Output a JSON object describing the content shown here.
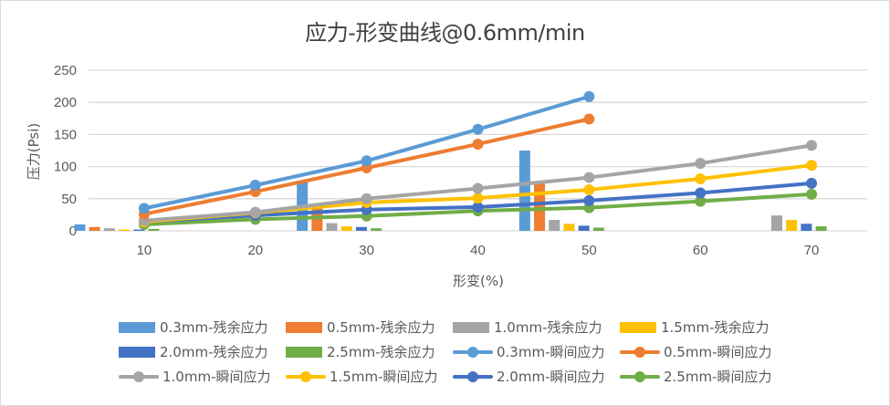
{
  "chart_data": {
    "type": "bar+line",
    "title": "应力-形变曲线@0.6mm/min",
    "xlabel": "形变(%)",
    "ylabel": "压力(Psi)",
    "categories": [
      "10",
      "20",
      "30",
      "40",
      "50",
      "60",
      "70"
    ],
    "ylim": [
      0,
      250
    ],
    "yticks": [
      "0",
      "50",
      "100",
      "150",
      "200",
      "250"
    ],
    "grid": true,
    "legend_position": "bottom",
    "bar_series": [
      {
        "name": "0.3mm-残余应力",
        "color": "#5b9bd5",
        "values": [
          10,
          null,
          78,
          null,
          125,
          null,
          null
        ]
      },
      {
        "name": "0.5mm-残余应力",
        "color": "#ed7d31",
        "values": [
          6,
          null,
          35,
          null,
          77,
          null,
          null
        ]
      },
      {
        "name": "1.0mm-残余应力",
        "color": "#a5a5a5",
        "values": [
          4,
          null,
          12,
          null,
          17,
          null,
          24
        ]
      },
      {
        "name": "1.5mm-残余应力",
        "color": "#ffc000",
        "values": [
          2,
          null,
          7,
          null,
          11,
          null,
          17
        ]
      },
      {
        "name": "2.0mm-残余应力",
        "color": "#4472c4",
        "values": [
          2,
          null,
          6,
          null,
          8,
          null,
          11
        ]
      },
      {
        "name": "2.5mm-残余应力",
        "color": "#70ad47",
        "values": [
          3,
          null,
          4,
          null,
          5,
          null,
          7
        ]
      }
    ],
    "line_series": [
      {
        "name": "0.3mm-瞬间应力",
        "color": "#5b9bd5",
        "values": [
          35,
          71,
          109,
          158,
          209,
          null,
          null
        ]
      },
      {
        "name": "0.5mm-瞬间应力",
        "color": "#ed7d31",
        "values": [
          26,
          61,
          98,
          135,
          174,
          null,
          null
        ]
      },
      {
        "name": "1.0mm-瞬间应力",
        "color": "#a5a5a5",
        "values": [
          16,
          29,
          50,
          66,
          83,
          105,
          133
        ]
      },
      {
        "name": "1.5mm-瞬间应力",
        "color": "#ffc000",
        "values": [
          14,
          28,
          44,
          51,
          64,
          81,
          102
        ]
      },
      {
        "name": "2.0mm-瞬间应力",
        "color": "#4472c4",
        "values": [
          14,
          24,
          33,
          37,
          47,
          59,
          74
        ]
      },
      {
        "name": "2.5mm-瞬间应力",
        "color": "#70ad47",
        "values": [
          10,
          18,
          23,
          31,
          36,
          46,
          57
        ]
      }
    ]
  },
  "legend": [
    {
      "label": "0.3mm-残余应力",
      "kind": "bar",
      "color": "#5b9bd5"
    },
    {
      "label": "0.5mm-残余应力",
      "kind": "bar",
      "color": "#ed7d31"
    },
    {
      "label": "1.0mm-残余应力",
      "kind": "bar",
      "color": "#a5a5a5"
    },
    {
      "label": "1.5mm-残余应力",
      "kind": "bar",
      "color": "#ffc000"
    },
    {
      "label": "2.0mm-残余应力",
      "kind": "bar",
      "color": "#4472c4"
    },
    {
      "label": "2.5mm-残余应力",
      "kind": "bar",
      "color": "#70ad47"
    },
    {
      "label": "0.3mm-瞬间应力",
      "kind": "line",
      "color": "#5b9bd5"
    },
    {
      "label": "0.5mm-瞬间应力",
      "kind": "line",
      "color": "#ed7d31"
    },
    {
      "label": "1.0mm-瞬间应力",
      "kind": "line",
      "color": "#a5a5a5"
    },
    {
      "label": "1.5mm-瞬间应力",
      "kind": "line",
      "color": "#ffc000"
    },
    {
      "label": "2.0mm-瞬间应力",
      "kind": "line",
      "color": "#4472c4"
    },
    {
      "label": "2.5mm-瞬间应力",
      "kind": "line",
      "color": "#70ad47"
    }
  ]
}
